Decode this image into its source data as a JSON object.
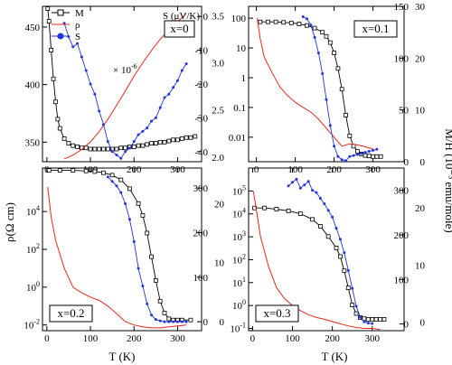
{
  "layout_labels": {
    "ylabel_left": "ρ(Ω cm)",
    "ylabel_right": "M/H (10⁻³ emu/mole)",
    "xlabel": "T (K)"
  },
  "chart_data": [
    {
      "type": "line",
      "id": "x0",
      "annotation": "x=0",
      "extra_label": "S (μV/K)",
      "factor_label": "× 10",
      "factor_exp": "-6",
      "legend": [
        {
          "name": "M",
          "color": "#000000",
          "marker": "open-square"
        },
        {
          "name": "ρ",
          "color": "#e8281e",
          "marker": "line"
        },
        {
          "name": "S",
          "color": "#2233dd",
          "marker": "filled-circle"
        }
      ],
      "x": {
        "range": [
          -10,
          355
        ],
        "ticks": [
          0,
          100,
          200,
          300
        ],
        "ticklabels": [
          "0",
          "100",
          "200",
          "300"
        ]
      },
      "y_left": {
        "label": "M",
        "range": [
          333,
          468
        ],
        "ticks": [
          350,
          400,
          450
        ],
        "ticklabels": [
          "350",
          "400",
          "450"
        ]
      },
      "y_mid": {
        "label": "S (μV/K)",
        "range": [
          -43,
          3
        ],
        "ticks": [
          -40,
          -30,
          -20,
          -10,
          0
        ],
        "ticklabels": [
          "-40",
          "-30",
          "-20",
          "-10",
          "0"
        ]
      },
      "y_right": {
        "label": "ρ × 10^-6",
        "range": [
          1.95,
          3.6
        ],
        "ticks": [
          2.0,
          2.5,
          3.0,
          3.5
        ],
        "ticklabels": [
          "2.0",
          "2.5",
          "3.0",
          "3.5"
        ]
      },
      "series": [
        {
          "name": "M",
          "axis": "left",
          "color": "#000000",
          "marker": "open-square",
          "x": [
            2,
            5,
            10,
            15,
            20,
            25,
            30,
            40,
            50,
            60,
            70,
            80,
            90,
            100,
            110,
            120,
            130,
            140,
            150,
            160,
            170,
            180,
            190,
            200,
            210,
            220,
            230,
            240,
            250,
            260,
            270,
            280,
            290,
            300,
            310,
            320,
            330,
            340
          ],
          "y": [
            466,
            455,
            430,
            405,
            385,
            370,
            362,
            353,
            349,
            347,
            346,
            345,
            345,
            344,
            344,
            344,
            344,
            344,
            344,
            344,
            345,
            345,
            346,
            346,
            347,
            347,
            348,
            349,
            349,
            350,
            350,
            351,
            352,
            352,
            353,
            354,
            354,
            355
          ]
        },
        {
          "name": "ρ",
          "axis": "right",
          "color": "#e8281e",
          "marker": "line",
          "x": [
            40,
            60,
            80,
            100,
            120,
            140,
            160,
            180,
            200,
            220,
            240,
            260,
            280,
            300,
            320
          ],
          "y": [
            1.98,
            2.02,
            2.08,
            2.16,
            2.27,
            2.4,
            2.55,
            2.7,
            2.86,
            3.0,
            3.13,
            3.25,
            3.35,
            3.44,
            3.52
          ]
        },
        {
          "name": "S",
          "axis": "mid",
          "color": "#2233dd",
          "marker": "filled-circle",
          "x": [
            40,
            50,
            60,
            70,
            80,
            90,
            100,
            110,
            120,
            130,
            140,
            150,
            160,
            170,
            180,
            190,
            200,
            210,
            220,
            230,
            240,
            250,
            260,
            270,
            280,
            290,
            300,
            310,
            320
          ],
          "y": [
            -2,
            -6,
            -9,
            -8,
            -12,
            -16,
            -20,
            -23,
            -28,
            -32,
            -37,
            -40,
            -41,
            -42,
            -40,
            -39,
            -37,
            -35,
            -34,
            -33,
            -31,
            -30,
            -27,
            -24,
            -23,
            -21,
            -19,
            -16,
            -14
          ]
        }
      ]
    },
    {
      "type": "line",
      "id": "x01",
      "annotation": "x=0.1",
      "x": {
        "range": [
          -20,
          380
        ],
        "ticks": [
          0,
          100,
          200,
          300
        ],
        "ticklabels": [
          "0",
          "100",
          "200",
          "300"
        ]
      },
      "y_left": {
        "label": "ρ",
        "scale": "log",
        "range": [
          0.0015,
          250
        ],
        "ticks": [
          0.01,
          0.1,
          1,
          10,
          100
        ],
        "ticklabels": [
          "0.01",
          "0.1",
          "1",
          "10",
          "100"
        ]
      },
      "y_mid": {
        "label": "S",
        "range": [
          0,
          150
        ],
        "ticks": [
          0,
          50,
          100,
          150
        ],
        "ticklabels": [
          "0",
          "50",
          "100",
          "150"
        ]
      },
      "y_right": {
        "label": "M/H",
        "range": [
          0,
          30
        ],
        "ticks": [
          0,
          10,
          20,
          30
        ],
        "ticklabels": [
          "0",
          "10",
          "20",
          "30"
        ]
      },
      "series": [
        {
          "name": "M",
          "axis": "right",
          "color": "#000000",
          "marker": "open-square",
          "x": [
            10,
            30,
            50,
            70,
            90,
            110,
            130,
            150,
            170,
            180,
            190,
            200,
            210,
            220,
            230,
            240,
            250,
            260,
            270,
            280,
            290,
            300,
            310,
            320
          ],
          "y": [
            27,
            27,
            27,
            26.9,
            26.8,
            26.6,
            26.3,
            25.8,
            25,
            24.2,
            23,
            21,
            18,
            14,
            9,
            5,
            3,
            2,
            1.5,
            1.2,
            1.1,
            1.0,
            1.0,
            1.0
          ]
        },
        {
          "name": "ρ",
          "axis": "left",
          "color": "#e8281e",
          "marker": "line",
          "x": [
            2,
            10,
            20,
            40,
            60,
            80,
            100,
            120,
            140,
            160,
            180,
            200,
            220,
            240,
            260,
            280,
            300
          ],
          "y": [
            100,
            20,
            5,
            1.5,
            0.5,
            0.25,
            0.15,
            0.1,
            0.07,
            0.04,
            0.02,
            0.01,
            0.005,
            0.006,
            0.0055,
            0.0048,
            0.004
          ]
        },
        {
          "name": "S",
          "axis": "mid",
          "color": "#2233dd",
          "marker": "filled-circle",
          "x": [
            120,
            130,
            140,
            150,
            160,
            170,
            180,
            190,
            200,
            210,
            220,
            230,
            240,
            250,
            260,
            270,
            280,
            290,
            300,
            310
          ],
          "y": [
            140,
            138,
            132,
            120,
            105,
            85,
            60,
            35,
            15,
            5,
            2,
            1,
            5,
            6,
            7,
            8,
            9,
            10,
            11,
            12
          ]
        }
      ]
    },
    {
      "type": "line",
      "id": "x02",
      "annotation": "x=0.2",
      "x": {
        "range": [
          -10,
          355
        ],
        "ticks": [
          0,
          100,
          200,
          300
        ],
        "ticklabels": [
          "0",
          "100",
          "200",
          "300"
        ]
      },
      "y_left": {
        "label": "ρ",
        "scale": "log",
        "range": [
          0.005,
          2000000
        ],
        "ticks": [
          0.01,
          1,
          100,
          10000
        ],
        "ticklabels": [
          "10",
          "10",
          "10",
          "10"
        ],
        "tickexp": [
          "-2",
          "0",
          "2",
          "4"
        ]
      },
      "y_mid": {
        "label": "S",
        "range": [
          -20,
          345
        ],
        "ticks": [
          0,
          100,
          200,
          300
        ],
        "ticklabels": [
          "0",
          "100",
          "200",
          "300"
        ]
      },
      "y_right": {
        "label": "M/H",
        "range": [
          -1.5,
          26
        ],
        "ticks": [
          0,
          10,
          20
        ],
        "ticklabels": [
          "0",
          "10",
          "20"
        ]
      },
      "series": [
        {
          "name": "M",
          "axis": "right",
          "color": "#000000",
          "marker": "open-square",
          "x": [
            5,
            30,
            60,
            90,
            110,
            130,
            150,
            170,
            190,
            210,
            220,
            230,
            240,
            250,
            260,
            270,
            280,
            290,
            300,
            310,
            330
          ],
          "y": [
            25.6,
            25.6,
            25.6,
            25.5,
            25.4,
            25.2,
            24.8,
            24,
            22.5,
            20,
            18,
            15,
            11,
            7,
            3.5,
            1.5,
            0.5,
            0.3,
            0.3,
            0.3,
            0.3
          ]
        },
        {
          "name": "ρ",
          "axis": "left",
          "color": "#e8281e",
          "marker": "line",
          "x": [
            2,
            10,
            20,
            40,
            60,
            80,
            100,
            120,
            140,
            160,
            180,
            200,
            220,
            240,
            260,
            280,
            300,
            320
          ],
          "y": [
            200000,
            5000,
            300,
            10,
            1,
            0.5,
            0.3,
            0.2,
            0.1,
            0.04,
            0.015,
            0.01,
            0.008,
            0.007,
            0.007,
            0.008,
            0.009,
            0.01
          ]
        },
        {
          "name": "S",
          "axis": "mid",
          "color": "#2233dd",
          "marker": "filled-circle",
          "x": [
            140,
            150,
            160,
            170,
            180,
            190,
            200,
            210,
            220,
            230,
            240,
            250,
            260,
            270,
            280,
            290,
            300,
            310,
            320
          ],
          "y": [
            325,
            315,
            305,
            290,
            265,
            230,
            180,
            120,
            80,
            40,
            15,
            5,
            2,
            0,
            0,
            0,
            0,
            0,
            0
          ]
        }
      ]
    },
    {
      "type": "line",
      "id": "x03",
      "annotation": "x=0.3",
      "x": {
        "range": [
          -10,
          380
        ],
        "ticks": [
          0,
          100,
          200,
          300
        ],
        "ticklabels": [
          "0",
          "100",
          "200",
          "300"
        ]
      },
      "y_left": {
        "label": "ρ",
        "scale": "log",
        "range": [
          0.08,
          1000000
        ],
        "ticks": [
          0.1,
          1,
          10,
          100,
          1000,
          10000,
          100000
        ],
        "ticklabels": [
          "10",
          "10",
          "10",
          "10",
          "10",
          "10",
          "10"
        ],
        "tickexp": [
          "-1",
          "0",
          "1",
          "2",
          "3",
          "4",
          "5"
        ]
      },
      "y_mid": {
        "label": "S",
        "range": [
          -15,
          350
        ],
        "ticks": [
          0,
          100,
          200,
          300
        ],
        "ticklabels": [
          "0",
          "100",
          "200",
          "300"
        ]
      },
      "y_right": {
        "label": "M/H",
        "range": [
          -1.5,
          27
        ],
        "ticks": [
          0,
          10,
          20
        ],
        "ticklabels": [
          "0",
          "10",
          "20"
        ]
      },
      "series": [
        {
          "name": "M",
          "axis": "right",
          "color": "#000000",
          "marker": "open-square",
          "x": [
            5,
            30,
            60,
            90,
            120,
            150,
            170,
            190,
            210,
            220,
            230,
            240,
            250,
            260,
            270,
            280,
            290,
            300,
            310,
            320,
            330
          ],
          "y": [
            20,
            20,
            19.8,
            19.5,
            19,
            18,
            16.8,
            15,
            13,
            11.5,
            9,
            6,
            3,
            1.5,
            0.8,
            0.6,
            0.5,
            0.5,
            0.5,
            0.5,
            0.5
          ]
        },
        {
          "name": "ρ",
          "axis": "left",
          "color": "#e8281e",
          "marker": "line",
          "x": [
            2,
            20,
            40,
            60,
            80,
            100,
            120,
            140,
            160,
            180,
            200,
            220,
            240,
            260,
            280,
            300,
            320
          ],
          "y": [
            100000,
            1000,
            50,
            6,
            2,
            1,
            0.6,
            0.4,
            0.3,
            0.25,
            0.2,
            0.16,
            0.13,
            0.11,
            0.1,
            0.1,
            0.09
          ]
        },
        {
          "name": "S",
          "axis": "mid",
          "color": "#2233dd",
          "marker": "filled-circle",
          "x": [
            90,
            100,
            110,
            120,
            130,
            140,
            150,
            160,
            170,
            180,
            190,
            200,
            210,
            220,
            230,
            240,
            250,
            260,
            270,
            280,
            290,
            300
          ],
          "y": [
            310,
            318,
            325,
            305,
            312,
            320,
            300,
            295,
            282,
            270,
            255,
            240,
            215,
            190,
            160,
            120,
            80,
            40,
            15,
            5,
            2,
            1
          ]
        }
      ]
    }
  ]
}
